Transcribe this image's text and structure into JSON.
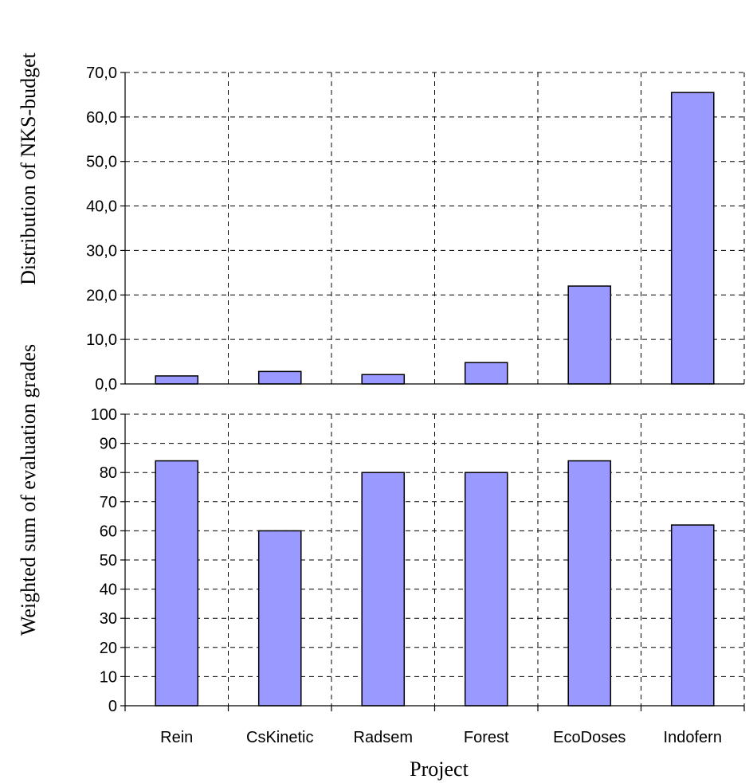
{
  "chart_data": [
    {
      "type": "bar",
      "categories": [
        "Rein",
        "CsKinetic",
        "Radsem",
        "Forest",
        "EcoDoses",
        "Indofern"
      ],
      "values": [
        1.8,
        2.8,
        2.1,
        4.8,
        22.0,
        65.5
      ],
      "ylabel": "Distribution of NKS-budget",
      "ylim": [
        0,
        70
      ],
      "yticks": [
        "0,0",
        "10,0",
        "20,0",
        "30,0",
        "40,0",
        "50,0",
        "60,0",
        "70,0"
      ],
      "grid": true,
      "bar_color": "#9999ff"
    },
    {
      "type": "bar",
      "categories": [
        "Rein",
        "CsKinetic",
        "Radsem",
        "Forest",
        "EcoDoses",
        "Indofern"
      ],
      "values": [
        84,
        60,
        80,
        80,
        84,
        62
      ],
      "xlabel": "Project",
      "ylabel": "Weighted sum of evaluation grades",
      "ylim": [
        0,
        100
      ],
      "yticks": [
        "0",
        "10",
        "20",
        "30",
        "40",
        "50",
        "60",
        "70",
        "80",
        "90",
        "100"
      ],
      "grid": true,
      "bar_color": "#9999ff"
    }
  ]
}
